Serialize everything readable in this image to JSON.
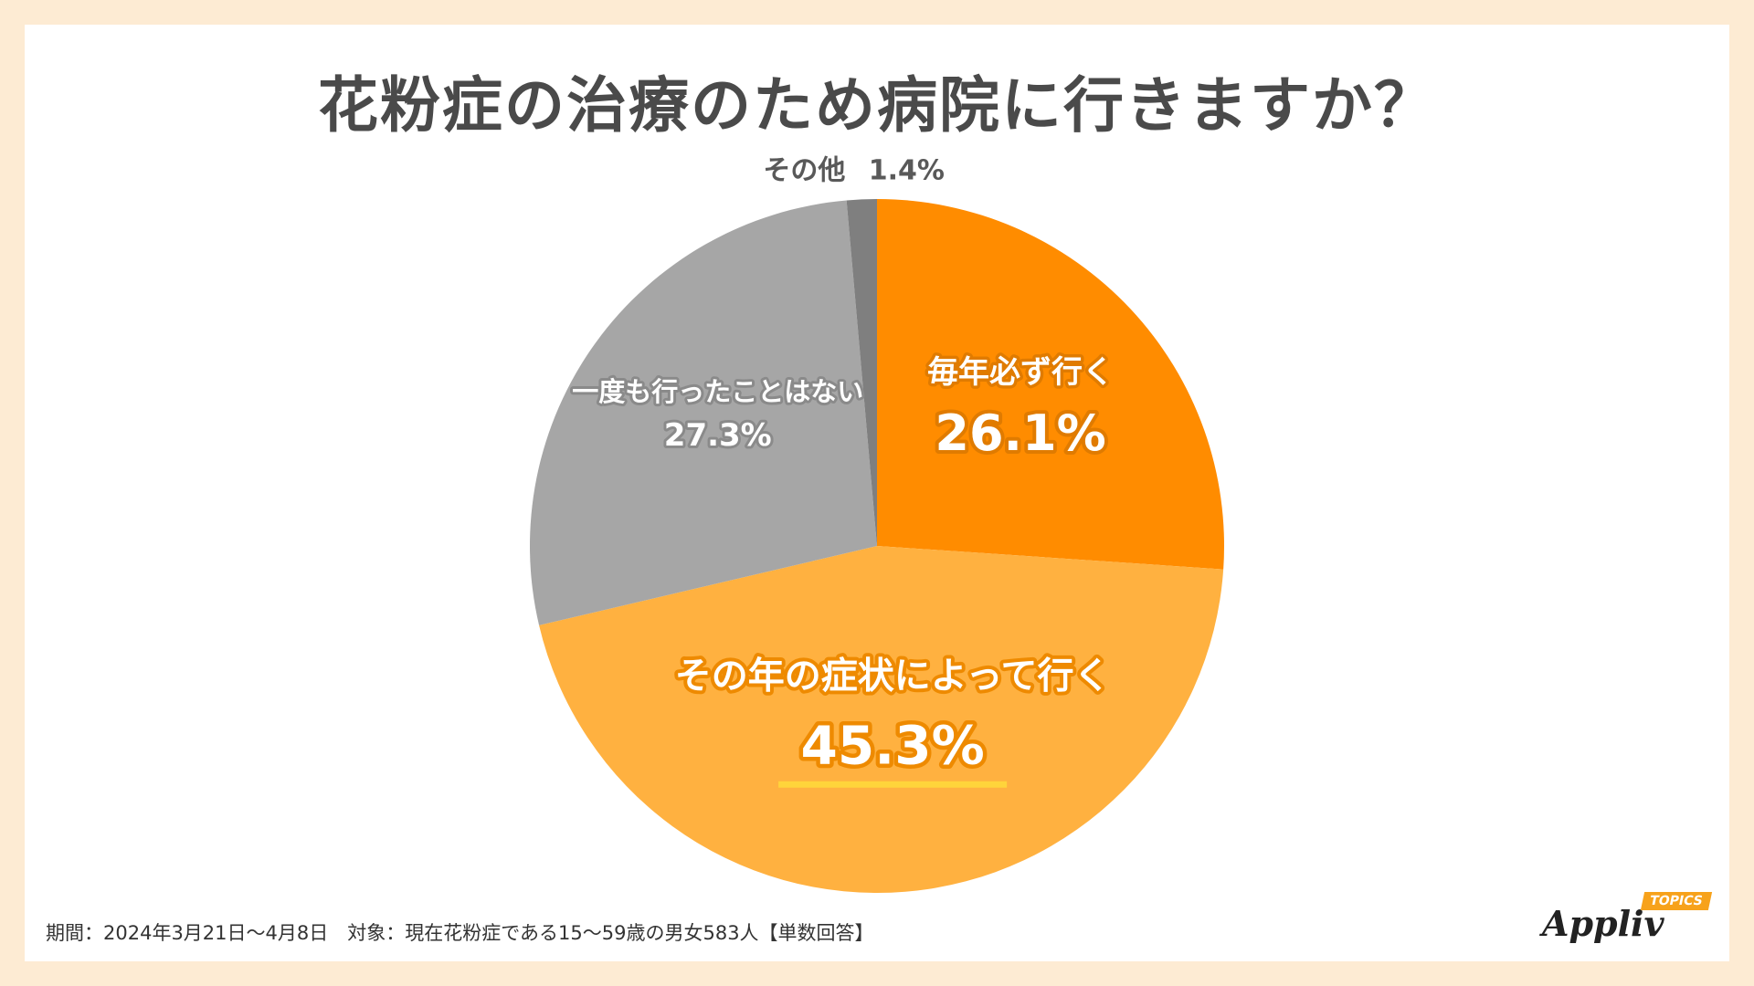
{
  "title": "花粉症の治療のため病院に行きますか？",
  "footer": "期間：2024年3月21日～4月8日　対象：現在花粉症である15～59歳の男女583人【単数回答】",
  "brand": {
    "name": "Appliv",
    "tag": "TOPICS"
  },
  "chart_data": {
    "type": "pie",
    "title": "花粉症の治療のため病院に行きますか？",
    "unit": "%",
    "slices": [
      {
        "label": "毎年必ず行く",
        "value": 26.1,
        "value_label": "26.1%",
        "color": "#ff8c00"
      },
      {
        "label": "その年の症状によって行く",
        "value": 45.3,
        "value_label": "45.3%",
        "color": "#ffb140"
      },
      {
        "label": "一度も行ったことはない",
        "value": 27.3,
        "value_label": "27.3%",
        "color": "#a6a6a6"
      },
      {
        "label": "その他",
        "value": 1.4,
        "value_label": "1.4%",
        "color": "#7f7f7f"
      }
    ],
    "start_angle": "12 o'clock",
    "direction": "clockwise",
    "highlight_color": "#ffd43b"
  }
}
